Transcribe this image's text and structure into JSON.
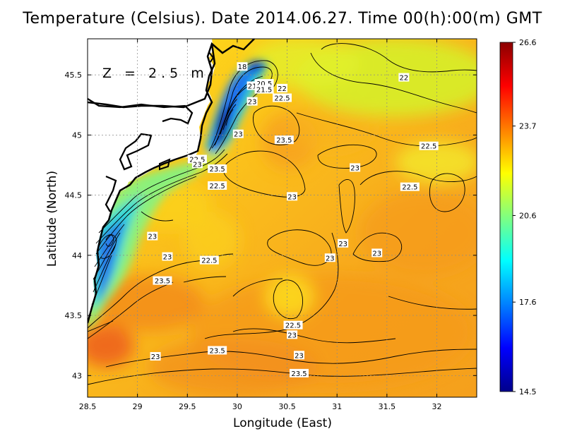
{
  "title": "Temperature (Celsius). Date 2014.06.27. Time 00(h):00(m) GMT",
  "xlabel": "Longitude (East)",
  "ylabel": "Latitude (North)",
  "depth_label": "Z = 2.5 m",
  "axes": {
    "x_range": [
      28.5,
      32.4
    ],
    "y_range": [
      42.82,
      45.8
    ],
    "x_ticks": [
      28.5,
      29,
      29.5,
      30,
      30.5,
      31,
      31.5,
      32
    ],
    "x_tick_labels": [
      "28.5",
      "29",
      "29.5",
      "30",
      "30.5",
      "31",
      "31.5",
      "32"
    ],
    "y_ticks": [
      43,
      43.5,
      44,
      44.5,
      45,
      45.5
    ],
    "y_tick_labels": [
      "43",
      "43.5",
      "44",
      "44.5",
      "45",
      "45.5"
    ],
    "grid": true
  },
  "colorbar": {
    "min": 14.5,
    "max": 26.6,
    "tick_labels": [
      "14.5",
      "17.6",
      "20.6",
      "23.7",
      "26.6"
    ],
    "tick_values": [
      14.5,
      17.6,
      20.6,
      23.7,
      26.6
    ],
    "colormap": [
      "#00008b",
      "#0000ff",
      "#0080ff",
      "#00ffff",
      "#80ff80",
      "#ffff00",
      "#ff8000",
      "#ff0000",
      "#8b0000"
    ]
  },
  "contour_labels": [
    {
      "text": "18",
      "lon": 30.05,
      "lat": 45.57
    },
    {
      "text": "20.5",
      "lon": 30.27,
      "lat": 45.43
    },
    {
      "text": "21",
      "lon": 30.15,
      "lat": 45.41
    },
    {
      "text": "21.5",
      "lon": 30.27,
      "lat": 45.38
    },
    {
      "text": "22",
      "lon": 30.45,
      "lat": 45.39
    },
    {
      "text": "22.5",
      "lon": 30.45,
      "lat": 45.31
    },
    {
      "text": "23",
      "lon": 30.15,
      "lat": 45.28
    },
    {
      "text": "23",
      "lon": 30.01,
      "lat": 45.01
    },
    {
      "text": "23.5",
      "lon": 30.47,
      "lat": 44.96
    },
    {
      "text": "22",
      "lon": 31.67,
      "lat": 45.48
    },
    {
      "text": "22.5",
      "lon": 31.92,
      "lat": 44.91
    },
    {
      "text": "23",
      "lon": 31.18,
      "lat": 44.73
    },
    {
      "text": "22.5",
      "lon": 31.73,
      "lat": 44.57
    },
    {
      "text": "23",
      "lon": 30.55,
      "lat": 44.49
    },
    {
      "text": "22.5",
      "lon": 29.8,
      "lat": 44.58
    },
    {
      "text": "23.5",
      "lon": 29.8,
      "lat": 44.72
    },
    {
      "text": "22.5",
      "lon": 29.6,
      "lat": 44.8
    },
    {
      "text": "23",
      "lon": 29.6,
      "lat": 44.76
    },
    {
      "text": "23",
      "lon": 29.15,
      "lat": 44.16
    },
    {
      "text": "23",
      "lon": 29.3,
      "lat": 43.99
    },
    {
      "text": "22.5",
      "lon": 29.72,
      "lat": 43.96
    },
    {
      "text": "23.5",
      "lon": 29.25,
      "lat": 43.79
    },
    {
      "text": "23",
      "lon": 31.06,
      "lat": 44.1
    },
    {
      "text": "23",
      "lon": 30.93,
      "lat": 43.98
    },
    {
      "text": "23",
      "lon": 31.4,
      "lat": 44.02
    },
    {
      "text": "22.5",
      "lon": 30.56,
      "lat": 43.42
    },
    {
      "text": "23",
      "lon": 30.55,
      "lat": 43.34
    },
    {
      "text": "23.5",
      "lon": 29.8,
      "lat": 43.21
    },
    {
      "text": "23",
      "lon": 30.62,
      "lat": 43.17
    },
    {
      "text": "23",
      "lon": 29.18,
      "lat": 43.16
    },
    {
      "text": "23.5",
      "lon": 30.62,
      "lat": 43.02
    }
  ]
}
